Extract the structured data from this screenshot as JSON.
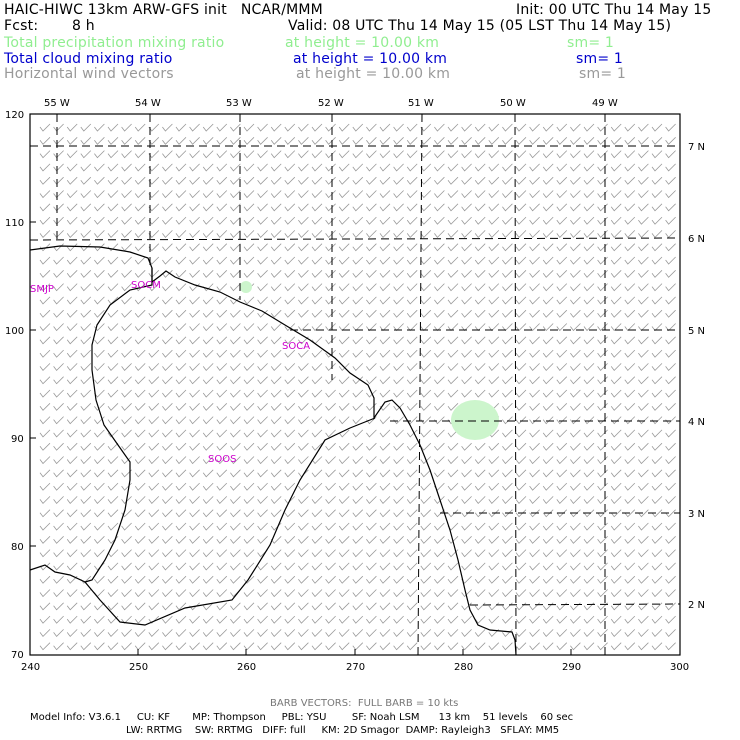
{
  "header": {
    "model_title": "HAIC-HIWC 13km ARW-GFS init   NCAR/MMM",
    "init": "Init: 00 UTC Thu 14 May 15",
    "fcst_label": "Fcst:",
    "fcst_value": "8 h",
    "valid": "Valid: 08 UTC Thu 14 May 15 (05 LST Thu 14 May 15)",
    "fields": [
      {
        "name": "Total precipitation mixing ratio",
        "height": "at height = 10.00 km",
        "sm": "sm= 1",
        "color": "#90ee90"
      },
      {
        "name": "Total cloud mixing ratio",
        "height": "at height = 10.00 km",
        "sm": "sm= 1",
        "color": "#0000cc"
      },
      {
        "name": "Horizontal wind vectors",
        "height": "at height = 10.00 km",
        "sm": "sm= 1",
        "color": "#999999"
      }
    ]
  },
  "map": {
    "top_lon_labels": [
      "55 W",
      "54 W",
      "53 W",
      "52 W",
      "51 W",
      "50 W",
      "49 W"
    ],
    "right_lat_labels": [
      "7 N",
      "6 N",
      "5 N",
      "4 N",
      "3 N",
      "2 N"
    ],
    "left_y_ticks": [
      "120",
      "110",
      "100",
      "90",
      "80",
      "70"
    ],
    "bottom_x_ticks": [
      "240",
      "250",
      "260",
      "270",
      "280",
      "290",
      "300"
    ],
    "stations": [
      "SMJP",
      "SOCM",
      "SOCA",
      "SOOS"
    ],
    "precip_color": "#ccf5cc",
    "coast_color": "#000000",
    "barb_color": "#999999"
  },
  "footer": {
    "barb_note": "BARB VECTORS:  FULL BARB = 10 kts",
    "model_info": "Model Info: V3.6.1     CU: KF       MP: Thompson     PBL: YSU        SF: Noah LSM      13 km    51 levels    60 sec",
    "model_info2": "LW: RRTMG    SW: RRTMG   DIFF: full     KM: 2D Smagor  DAMP: Rayleigh3   SFLAY: MM5"
  }
}
